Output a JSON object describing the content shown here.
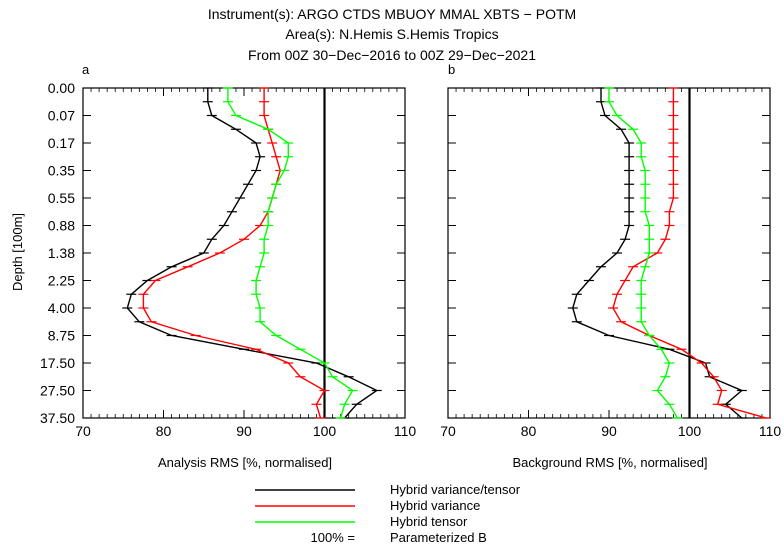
{
  "header": {
    "line1": "Instrument(s): ARGO CTDS MBUOY MMAL XBTS − POTM",
    "line2": "Area(s): N.Hemis S.Hemis Tropics",
    "line3": "From 00Z 30−Dec−2016 to 00Z 29−Dec−2021"
  },
  "colors": {
    "hybrid_variance_tensor": "#000000",
    "hybrid_variance": "#ff0000",
    "hybrid_tensor": "#00ff00",
    "reference": "#000000"
  },
  "legend": {
    "entries": [
      {
        "key": "hybrid_variance_tensor",
        "label": "Hybrid variance/tensor",
        "prefix": ""
      },
      {
        "key": "hybrid_variance",
        "label": "Hybrid variance",
        "prefix": ""
      },
      {
        "key": "hybrid_tensor",
        "label": "Hybrid tensor",
        "prefix": ""
      },
      {
        "key": "reference",
        "label": "Parameterized B",
        "prefix": "100% ="
      }
    ]
  },
  "chart_data": [
    {
      "type": "line",
      "panel_label": "a",
      "xlabel": "Analysis RMS [%, normalised]",
      "ylabel": "Depth [100m]",
      "xlim": [
        70,
        110
      ],
      "xticks": [
        "70",
        "80",
        "90",
        "100",
        "110"
      ],
      "yticks": [
        "0.00",
        "0.07",
        "0.17",
        "0.35",
        "0.55",
        "0.88",
        "1.38",
        "2.25",
        "4.00",
        "8.75",
        "17.50",
        "27.50",
        "37.50"
      ],
      "reference_x": 100,
      "y_level_index": [
        0,
        0.5,
        1,
        1.5,
        2,
        2.5,
        3,
        3.5,
        4,
        4.5,
        5,
        5.5,
        6,
        6.5,
        7,
        7.5,
        8,
        8.5,
        9,
        9.5,
        10,
        10.5,
        11,
        11.5,
        12
      ],
      "series": [
        {
          "name": "Hybrid variance/tensor",
          "key": "hybrid_variance_tensor",
          "values": [
            85.5,
            85.5,
            86,
            89,
            91.5,
            92,
            91.5,
            90.5,
            89.5,
            88.5,
            87.5,
            86,
            85,
            81,
            78,
            76,
            75.5,
            77,
            81,
            90,
            99,
            103,
            106.5,
            104,
            102.5
          ]
        },
        {
          "name": "Hybrid variance",
          "key": "hybrid_variance",
          "values": [
            92.5,
            92.5,
            92.5,
            93,
            93.5,
            94,
            94.5,
            94,
            93.5,
            93,
            92,
            90,
            87,
            83,
            79,
            77.5,
            77.5,
            78.5,
            84,
            91.5,
            95.5,
            97,
            100,
            99,
            99.5
          ]
        },
        {
          "name": "Hybrid tensor",
          "key": "hybrid_tensor",
          "values": [
            88,
            88,
            89,
            93,
            95.5,
            95.5,
            95,
            94,
            93.5,
            93,
            93,
            92.5,
            92.5,
            92,
            91.5,
            91.5,
            92,
            92,
            94,
            97,
            100,
            101,
            103.5,
            102.5,
            102
          ]
        }
      ]
    },
    {
      "type": "line",
      "panel_label": "b",
      "xlabel": "Background RMS [%, normalised]",
      "xlim": [
        70,
        110
      ],
      "xticks": [
        "70",
        "80",
        "90",
        "100",
        "110"
      ],
      "reference_x": 100,
      "y_level_index": [
        0,
        0.5,
        1,
        1.5,
        2,
        2.5,
        3,
        3.5,
        4,
        4.5,
        5,
        5.5,
        6,
        6.5,
        7,
        7.5,
        8,
        8.5,
        9,
        9.5,
        10,
        10.5,
        11,
        11.5,
        12
      ],
      "series": [
        {
          "name": "Hybrid variance/tensor",
          "key": "hybrid_variance_tensor",
          "values": [
            89,
            89,
            89.5,
            91.5,
            92.5,
            92.5,
            92.5,
            92.5,
            92.5,
            92.5,
            92.5,
            92,
            91,
            89,
            87.5,
            86,
            85.5,
            86,
            90,
            97.5,
            102,
            102.5,
            106.5,
            104.5,
            106.5
          ]
        },
        {
          "name": "Hybrid variance",
          "key": "hybrid_variance",
          "values": [
            98,
            98,
            98,
            98,
            98,
            98,
            98,
            98,
            98,
            97.5,
            97.5,
            97,
            96,
            93,
            92,
            91,
            90.5,
            91.5,
            95,
            99,
            101.5,
            103,
            104,
            103.5,
            109.5
          ]
        },
        {
          "name": "Hybrid tensor",
          "key": "hybrid_tensor",
          "values": [
            90,
            90,
            91,
            93,
            94,
            94,
            94.5,
            94.5,
            94.5,
            94.5,
            95,
            95,
            95,
            94.5,
            94,
            94,
            94,
            94,
            95,
            96.5,
            97.5,
            97,
            96,
            97.5,
            98.5
          ]
        }
      ]
    }
  ]
}
